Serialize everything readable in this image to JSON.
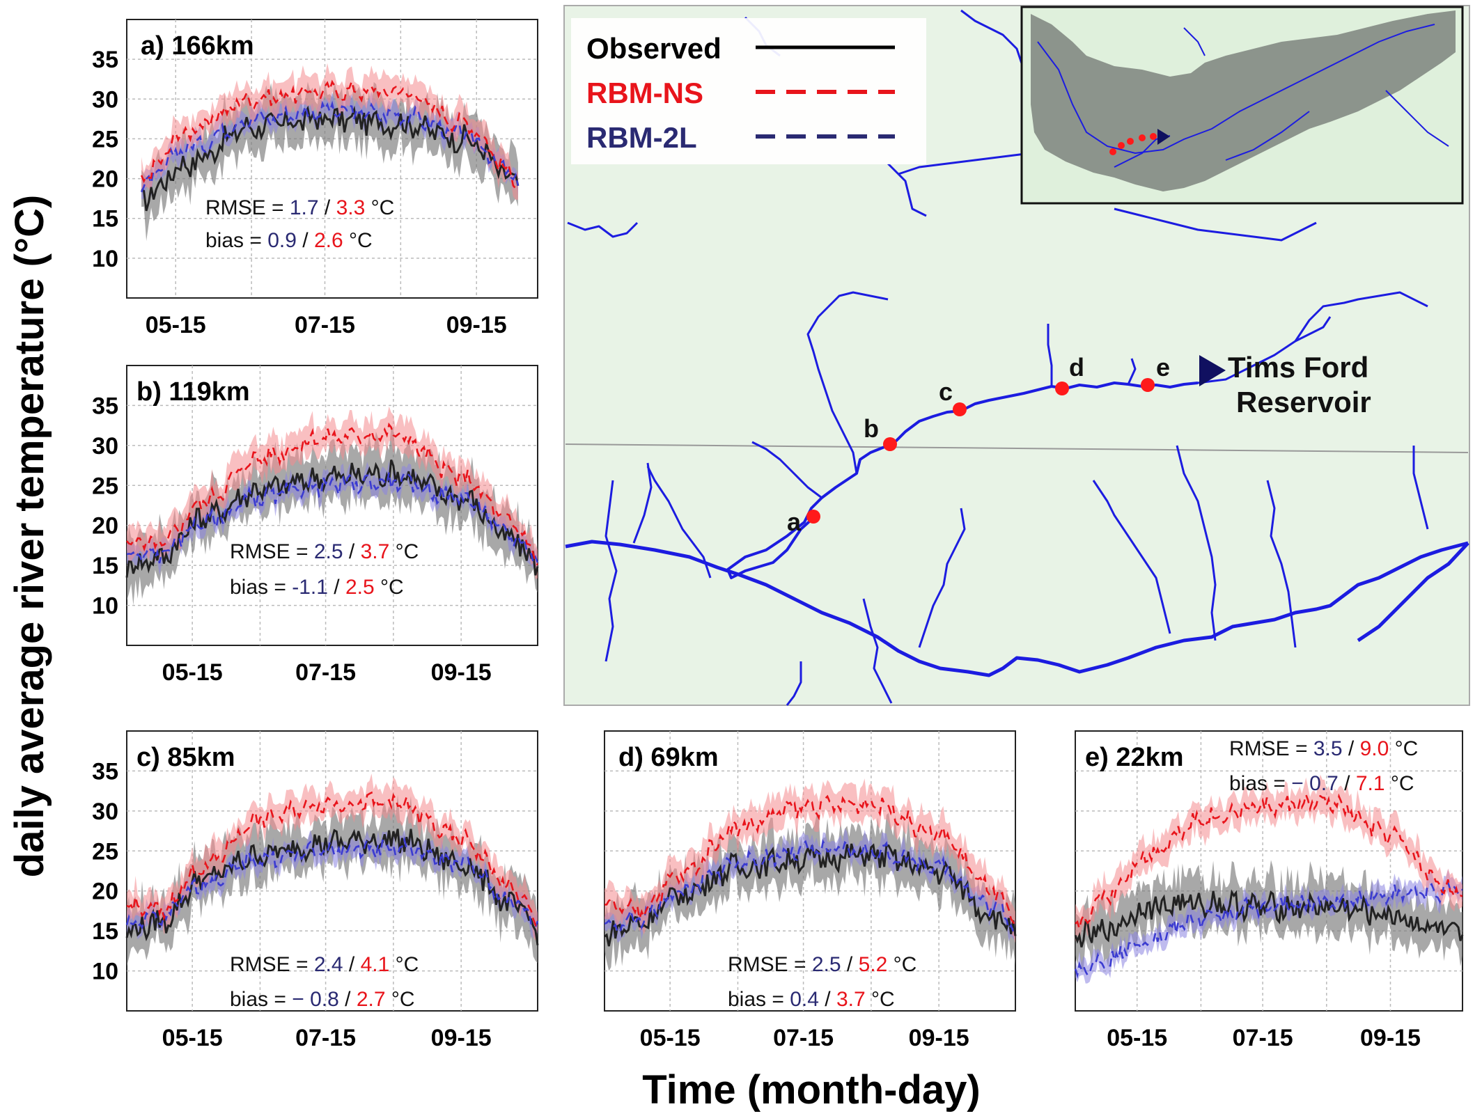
{
  "figure": {
    "ylabel": "daily average river temperature (°C)",
    "xlabel": "Time (month-day)"
  },
  "legend": {
    "entries": [
      {
        "label": "Observed",
        "color": "#000000",
        "dash": false
      },
      {
        "label": "RBM-NS",
        "color": "#e8141b",
        "dash": true
      },
      {
        "label": "RBM-2L",
        "color": "#2a2a72",
        "dash": true
      }
    ]
  },
  "colors": {
    "observed": "#222222",
    "observed_band": "#7a7a7a",
    "rbm_ns": "#e8141b",
    "rbm_ns_band": "#f48a8e",
    "rbm_2l": "#3b3bd1",
    "rbm_2l_band": "#8a83e0",
    "map_bg": "#e8f3e6",
    "river": "#1c1ce0",
    "site": "#ff1a1a",
    "stat_2l_text": "#2a2a72",
    "stat_ns_text": "#e8141b"
  },
  "map": {
    "sites": [
      "a",
      "b",
      "c",
      "d",
      "e"
    ],
    "reservoir_label": [
      "Tims Ford",
      "Reservoir"
    ]
  },
  "chart_data": [
    {
      "type": "line",
      "panel": "a",
      "title": "a) 166km",
      "x_ticks": [
        "05-15",
        "07-15",
        "09-15"
      ],
      "x_range": [
        "04-25",
        "10-10"
      ],
      "data_span": [
        "05-01",
        "10-02"
      ],
      "ylim": [
        5,
        40
      ],
      "y_ticks": [
        10,
        15,
        20,
        25,
        30,
        35
      ],
      "grid": true,
      "stats": {
        "rmse_2l": "1.7",
        "rmse_ns": "3.3",
        "bias_2l": "0.9",
        "bias_ns": "2.6",
        "rmse_prefix": "RMSE = ",
        "bias_prefix": "bias = ",
        "sep": " / ",
        "unit": " °C"
      },
      "series": [
        {
          "name": "Observed",
          "x": [
            "05-01",
            "05-20",
            "06-15",
            "07-15",
            "08-15",
            "09-10",
            "10-02"
          ],
          "y": [
            17.5,
            22,
            26.5,
            27.5,
            27,
            25,
            19.5
          ]
        },
        {
          "name": "RBM-NS",
          "x": [
            "05-01",
            "05-20",
            "06-15",
            "07-15",
            "08-15",
            "09-10",
            "10-02"
          ],
          "y": [
            20,
            26,
            30,
            31,
            31,
            27,
            20
          ]
        },
        {
          "name": "RBM-2L",
          "x": [
            "05-01",
            "05-20",
            "06-15",
            "07-15",
            "08-15",
            "09-10",
            "10-02"
          ],
          "y": [
            19,
            24,
            27.5,
            28.5,
            28,
            25.5,
            20
          ]
        }
      ]
    },
    {
      "type": "line",
      "panel": "b",
      "title": "b) 119km",
      "x_ticks": [
        "05-15",
        "07-15",
        "09-15"
      ],
      "x_range": [
        "04-15",
        "10-20"
      ],
      "data_span": [
        "04-15",
        "10-20"
      ],
      "ylim": [
        5,
        40
      ],
      "y_ticks": [
        10,
        15,
        20,
        25,
        30,
        35
      ],
      "grid": true,
      "stats": {
        "rmse_2l": "2.5",
        "rmse_ns": "3.7",
        "bias_2l": "-1.1",
        "bias_ns": "2.5",
        "rmse_prefix": "RMSE = ",
        "bias_prefix": "bias = ",
        "sep": " / ",
        "unit": " °C"
      },
      "series": [
        {
          "name": "Observed",
          "x": [
            "04-15",
            "04-30",
            "05-20",
            "06-15",
            "07-15",
            "08-15",
            "09-15",
            "10-10",
            "10-20"
          ],
          "y": [
            15,
            16,
            21,
            24.5,
            26,
            26.5,
            23.5,
            18,
            15
          ]
        },
        {
          "name": "RBM-NS",
          "x": [
            "04-15",
            "04-30",
            "05-20",
            "06-15",
            "07-15",
            "08-15",
            "09-15",
            "10-10",
            "10-20"
          ],
          "y": [
            18,
            17.5,
            23,
            28.5,
            31,
            31.5,
            26,
            20,
            16
          ]
        },
        {
          "name": "RBM-2L",
          "x": [
            "04-15",
            "04-30",
            "05-20",
            "06-15",
            "07-15",
            "08-15",
            "09-15",
            "10-10",
            "10-20"
          ],
          "y": [
            16,
            16.5,
            20.5,
            23.5,
            25,
            25.5,
            23.5,
            18.5,
            16
          ]
        }
      ]
    },
    {
      "type": "line",
      "panel": "c",
      "title": "c) 85km",
      "x_ticks": [
        "05-15",
        "07-15",
        "09-15"
      ],
      "x_range": [
        "04-15",
        "10-20"
      ],
      "data_span": [
        "04-15",
        "10-20"
      ],
      "ylim": [
        5,
        40
      ],
      "y_ticks": [
        10,
        15,
        20,
        25,
        30,
        35
      ],
      "grid": true,
      "stats": {
        "rmse_2l": "2.4",
        "rmse_ns": "4.1",
        "bias_2l": "− 0.8",
        "bias_ns": "2.7",
        "rmse_prefix": "RMSE = ",
        "bias_prefix": "bias = ",
        "sep": " / ",
        "unit": " °C"
      },
      "series": [
        {
          "name": "Observed",
          "x": [
            "04-15",
            "04-30",
            "05-20",
            "06-15",
            "07-15",
            "08-15",
            "09-15",
            "10-10",
            "10-20"
          ],
          "y": [
            15,
            16,
            21.5,
            24.5,
            26,
            26.5,
            23.5,
            18,
            15
          ]
        },
        {
          "name": "RBM-NS",
          "x": [
            "04-15",
            "04-30",
            "05-20",
            "06-15",
            "07-15",
            "08-15",
            "09-15",
            "10-10",
            "10-20"
          ],
          "y": [
            18,
            17.5,
            23,
            29,
            31,
            31,
            26.5,
            20,
            16
          ]
        },
        {
          "name": "RBM-2L",
          "x": [
            "04-15",
            "04-30",
            "05-20",
            "06-15",
            "07-15",
            "08-15",
            "09-15",
            "10-10",
            "10-20"
          ],
          "y": [
            16,
            16.5,
            21,
            24,
            25,
            25.5,
            23.5,
            18.5,
            16
          ]
        }
      ]
    },
    {
      "type": "line",
      "panel": "d",
      "title": "d) 69km",
      "x_ticks": [
        "05-15",
        "07-15",
        "09-15"
      ],
      "x_range": [
        "04-15",
        "10-20"
      ],
      "data_span": [
        "04-15",
        "10-20"
      ],
      "ylim": [
        5,
        40
      ],
      "grid": true,
      "stats": {
        "rmse_2l": "2.5",
        "rmse_ns": "5.2",
        "bias_2l": "0.4",
        "bias_ns": "3.7",
        "rmse_prefix": "RMSE = ",
        "bias_prefix": "bias = ",
        "sep": " / ",
        "unit": " °C"
      },
      "series": [
        {
          "name": "Observed",
          "x": [
            "04-15",
            "04-30",
            "05-20",
            "06-15",
            "07-15",
            "08-15",
            "09-15",
            "10-10",
            "10-20"
          ],
          "y": [
            14.5,
            16,
            19.5,
            23,
            24,
            24.5,
            22.5,
            17,
            15
          ]
        },
        {
          "name": "RBM-NS",
          "x": [
            "04-15",
            "04-30",
            "05-20",
            "06-15",
            "07-15",
            "08-15",
            "09-15",
            "10-10",
            "10-20"
          ],
          "y": [
            18,
            17.5,
            22,
            28,
            30.5,
            31,
            27,
            20,
            16
          ]
        },
        {
          "name": "RBM-2L",
          "x": [
            "04-15",
            "04-30",
            "05-20",
            "06-15",
            "07-15",
            "08-15",
            "09-15",
            "10-10",
            "10-20"
          ],
          "y": [
            15,
            16.5,
            20,
            23.5,
            25,
            25,
            23,
            18,
            16
          ]
        }
      ]
    },
    {
      "type": "line",
      "panel": "e",
      "title": "e) 22km",
      "x_ticks": [
        "05-15",
        "07-15",
        "09-15"
      ],
      "x_range": [
        "04-15",
        "10-20"
      ],
      "data_span": [
        "04-15",
        "10-20"
      ],
      "ylim": [
        5,
        40
      ],
      "grid": true,
      "stats": {
        "rmse_2l": "3.5",
        "rmse_ns": "9.0",
        "bias_2l": "− 0.7",
        "bias_ns": "7.1",
        "rmse_prefix": "RMSE = ",
        "bias_prefix": "bias = ",
        "sep": " / ",
        "unit": " °C"
      },
      "series": [
        {
          "name": "Observed",
          "x": [
            "04-15",
            "04-30",
            "05-20",
            "06-15",
            "07-15",
            "08-15",
            "09-15",
            "10-10",
            "10-20"
          ],
          "y": [
            14,
            15,
            18,
            18.5,
            18,
            18,
            17,
            15,
            14
          ]
        },
        {
          "name": "RBM-NS",
          "x": [
            "04-15",
            "04-30",
            "05-20",
            "06-15",
            "07-15",
            "08-15",
            "09-15",
            "10-10",
            "10-20"
          ],
          "y": [
            15.5,
            19.5,
            24.5,
            29,
            30.5,
            31,
            27,
            21,
            19
          ]
        },
        {
          "name": "RBM-2L",
          "x": [
            "04-15",
            "04-30",
            "05-20",
            "06-15",
            "07-15",
            "08-15",
            "09-15",
            "10-10",
            "10-20"
          ],
          "y": [
            10,
            11.5,
            14,
            16.5,
            18,
            18.5,
            19.5,
            20,
            20
          ]
        }
      ]
    }
  ]
}
